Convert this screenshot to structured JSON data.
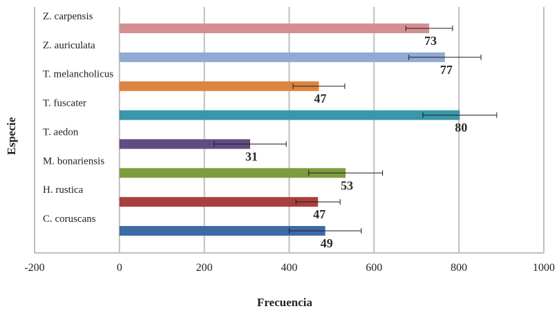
{
  "chart_data": {
    "type": "bar",
    "orientation": "horizontal",
    "xlabel": "Frecuencia",
    "ylabel": "Especie",
    "xlim": [
      -200,
      1000
    ],
    "xticks": [
      "-200",
      "0",
      "200",
      "400",
      "600",
      "800",
      "1000"
    ],
    "grid": true,
    "legend": "none",
    "categories": [
      "C. coruscans",
      "H. rustica",
      "M. bonariensis",
      "T. aedon",
      "T. fuscater",
      "T. melancholicus",
      "Z. auriculata",
      "Z. carpensis"
    ],
    "values": [
      485,
      468,
      533,
      308,
      802,
      470,
      767,
      730
    ],
    "error": [
      85,
      52,
      87,
      85,
      87,
      61,
      85,
      55
    ],
    "data_labels": [
      "49",
      "47",
      "53",
      "31",
      "80",
      "47",
      "77",
      "73"
    ],
    "colors": [
      "#3e6aa6",
      "#a9403e",
      "#7e9c3e",
      "#614c82",
      "#3a96a8",
      "#dc8440",
      "#92a9d3",
      "#d38f8f"
    ]
  }
}
